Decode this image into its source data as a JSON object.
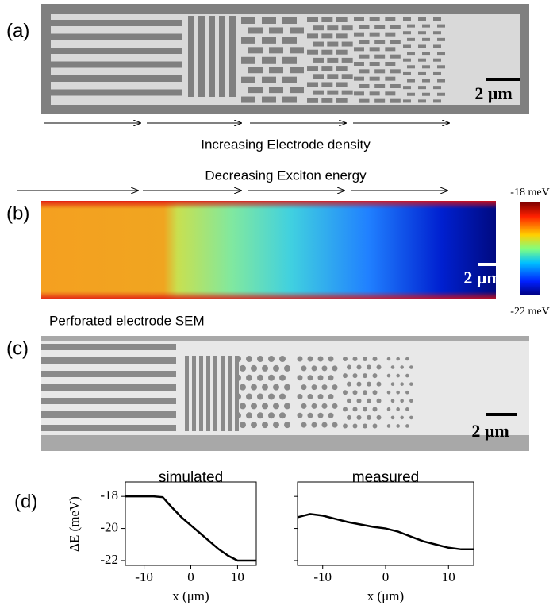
{
  "panels": {
    "a": {
      "label": "(a)",
      "scale_bar": "2 μm",
      "caption": "Increasing Electrode density"
    },
    "b": {
      "label": "(b)",
      "caption": "Decreasing Exciton energy",
      "colorbar_max": "-18 meV",
      "colorbar_min": "-22 meV",
      "scale_bar": "2 μm"
    },
    "c": {
      "label": "(c)",
      "title": "Perforated electrode SEM",
      "scale_bar": "2 μm"
    },
    "d": {
      "label": "(d)"
    }
  },
  "chart_data": [
    {
      "type": "line",
      "title": "simulated",
      "x_label": "x (μm)",
      "y_label": "ΔE (meV)",
      "color": "#000000",
      "x": [
        -14,
        -12,
        -10,
        -8,
        -6,
        -4,
        -2,
        0,
        2,
        4,
        6,
        8,
        10,
        12,
        14
      ],
      "values": [
        -18,
        -18,
        -18,
        -18,
        -18.05,
        -18.7,
        -19.3,
        -19.8,
        -20.3,
        -20.8,
        -21.3,
        -21.7,
        -22,
        -22,
        -22
      ],
      "xlim": [
        -14,
        14
      ],
      "ylim": [
        -22.3,
        -17.1
      ],
      "xticks": [
        -10,
        0,
        10
      ],
      "yticks": [
        -18,
        -20,
        -22
      ]
    },
    {
      "type": "line",
      "title": "measured",
      "x_label": "x (μm)",
      "color": "#000000",
      "x": [
        -14,
        -12,
        -10,
        -8,
        -6,
        -4,
        -2,
        0,
        2,
        4,
        6,
        8,
        10,
        12,
        14
      ],
      "values": [
        -19.3,
        -19.1,
        -19.2,
        -19.4,
        -19.6,
        -19.75,
        -19.9,
        -20,
        -20.2,
        -20.5,
        -20.8,
        -21,
        -21.2,
        -21.3,
        -21.3
      ],
      "xlim": [
        -14,
        14
      ],
      "ylim": [
        -22.3,
        -17.1
      ],
      "xticks": [
        -10,
        0,
        10
      ],
      "yticks": [
        -18,
        -20,
        -22
      ]
    }
  ]
}
